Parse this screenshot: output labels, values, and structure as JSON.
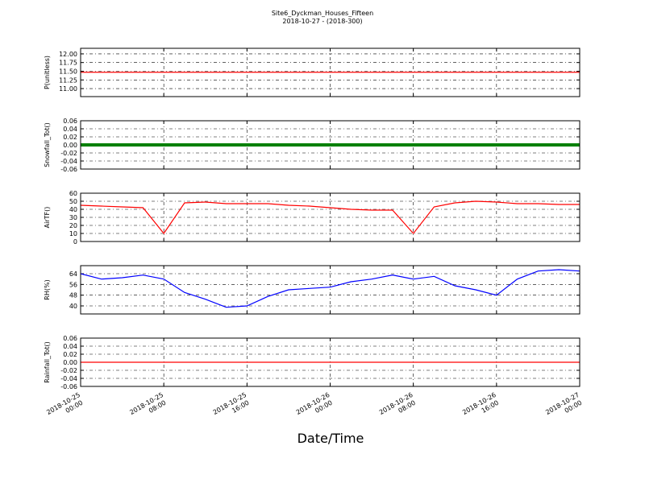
{
  "figure": {
    "title": "Site6_Dyckman_Houses_Fifteen",
    "subtitle": "2018-10-27 - (2018-300)",
    "xlabel": "Date/Time",
    "x": [
      "2018-10-25 00:00",
      "2018-10-25 02:00",
      "2018-10-25 04:00",
      "2018-10-25 06:00",
      "2018-10-25 08:00",
      "2018-10-25 10:00",
      "2018-10-25 12:00",
      "2018-10-25 14:00",
      "2018-10-25 16:00",
      "2018-10-25 18:00",
      "2018-10-25 20:00",
      "2018-10-25 22:00",
      "2018-10-26 00:00",
      "2018-10-26 02:00",
      "2018-10-26 04:00",
      "2018-10-26 06:00",
      "2018-10-26 08:00",
      "2018-10-26 10:00",
      "2018-10-26 12:00",
      "2018-10-26 14:00",
      "2018-10-26 16:00",
      "2018-10-26 18:00",
      "2018-10-26 20:00",
      "2018-10-26 22:00",
      "2018-10-27 00:00"
    ],
    "xlim": [
      "2018-10-25 00:00",
      "2018-10-27 00:00"
    ],
    "xticks": [
      "2018-10-25 00:00",
      "2018-10-25 08:00",
      "2018-10-25 16:00",
      "2018-10-26 00:00",
      "2018-10-26 08:00",
      "2018-10-26 16:00",
      "2018-10-27 00:00"
    ]
  },
  "chart_data": [
    {
      "type": "line",
      "ylabel": "P(unitless)",
      "color": "#ff0000",
      "grid": true,
      "ylim": [
        10.77,
        12.16
      ],
      "yticks": [
        {
          "value": 11,
          "label": "11.00"
        },
        {
          "value": 11.25,
          "label": "11.25"
        },
        {
          "value": 11.5,
          "label": "11.50"
        },
        {
          "value": 11.75,
          "label": "11.75"
        },
        {
          "value": 12,
          "label": "12.00"
        }
      ],
      "values": [
        11.47,
        11.47,
        11.47,
        11.47,
        11.47,
        11.47,
        11.47,
        11.47,
        11.47,
        11.47,
        11.47,
        11.47,
        11.47,
        11.47,
        11.47,
        11.47,
        11.47,
        11.47,
        11.47,
        11.47,
        11.47,
        11.47,
        11.47,
        11.47,
        11.47
      ]
    },
    {
      "type": "line",
      "ylabel": "Snowfall_Tot()",
      "color": "#008000",
      "marker": true,
      "grid": true,
      "ylim": [
        -0.06,
        0.06
      ],
      "yticks": [
        -0.06,
        -0.04,
        -0.02,
        {
          "value": 0,
          "label": "0.00"
        },
        0.02,
        0.04,
        0.06
      ],
      "values": [
        0,
        0,
        0,
        0,
        0,
        0,
        0,
        0,
        0,
        0,
        0,
        0,
        0,
        0,
        0,
        0,
        0,
        0,
        0,
        0,
        0,
        0,
        0,
        0,
        0
      ]
    },
    {
      "type": "line",
      "ylabel": "AirTF()",
      "color": "#ff0000",
      "grid": true,
      "ylim": [
        0,
        60
      ],
      "yticks": [
        0,
        10,
        20,
        30,
        40,
        50,
        60
      ],
      "values": [
        45,
        44,
        43,
        42,
        10,
        48,
        49,
        47,
        47,
        47,
        45,
        44,
        42,
        40,
        39,
        39,
        10,
        43,
        48,
        50,
        49,
        47,
        47,
        46,
        46
      ]
    },
    {
      "type": "line",
      "ylabel": "RH(%)",
      "color": "#0000ff",
      "grid": true,
      "ylim": [
        34,
        70
      ],
      "yticks": [
        40,
        48,
        56,
        64
      ],
      "values": [
        64,
        60,
        61,
        63,
        60,
        50,
        45,
        39,
        40,
        47,
        52,
        53,
        54,
        58,
        60,
        63,
        60,
        62,
        55,
        52,
        48,
        60,
        66,
        67,
        66
      ]
    },
    {
      "type": "line",
      "ylabel": "Rainfall_Tot()",
      "color": "#ff0000",
      "grid": true,
      "ylim": [
        -0.06,
        0.06
      ],
      "yticks": [
        -0.06,
        -0.04,
        -0.02,
        {
          "value": 0,
          "label": "0.00"
        },
        0.02,
        0.04,
        0.06
      ],
      "values": [
        0,
        0,
        0,
        0,
        0,
        0,
        0,
        0,
        0,
        0,
        0,
        0,
        0,
        0,
        0,
        0,
        0,
        0,
        0,
        0,
        0,
        0,
        0,
        0,
        0
      ]
    }
  ]
}
